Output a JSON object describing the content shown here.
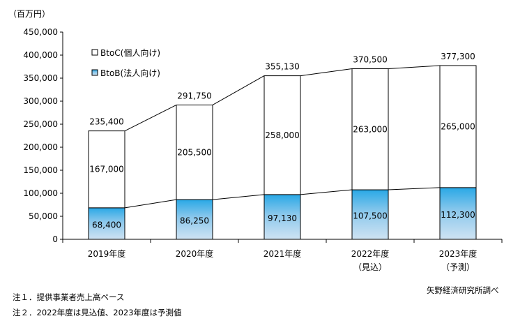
{
  "chart_data": {
    "type": "bar",
    "stacked": true,
    "unit_label": "（百万円）",
    "categories": [
      [
        "2019年度",
        ""
      ],
      [
        "2020年度",
        ""
      ],
      [
        "2021年度",
        ""
      ],
      [
        "2022年度",
        "（見込）"
      ],
      [
        "2023年度",
        "（予測）"
      ]
    ],
    "series": [
      {
        "name": "BtoB(法人向け)",
        "values": [
          68400,
          86250,
          97130,
          107500,
          112300
        ],
        "labels": [
          "68,400",
          "86,250",
          "97,130",
          "107,500",
          "112,300"
        ],
        "color_top": "#29a8e6",
        "color_bottom": "#cfe3f3"
      },
      {
        "name": "BtoC(個人向け)",
        "values": [
          167000,
          205500,
          258000,
          263000,
          265000
        ],
        "labels": [
          "167,000",
          "205,500",
          "258,000",
          "263,000",
          "265,000"
        ],
        "color": "#ffffff"
      }
    ],
    "totals": [
      235400,
      291750,
      355130,
      370500,
      377300
    ],
    "total_labels": [
      "235,400",
      "291,750",
      "355,130",
      "370,500",
      "377,300"
    ],
    "ylim": [
      0,
      450000
    ],
    "yticks": [
      0,
      50000,
      100000,
      150000,
      200000,
      250000,
      300000,
      350000,
      400000,
      450000
    ],
    "ytick_labels": [
      "0",
      "50,000",
      "100,000",
      "150,000",
      "200,000",
      "250,000",
      "300,000",
      "350,000",
      "400,000",
      "450,000"
    ],
    "grid": false,
    "legend_position": "top-left",
    "connector_lines": true
  },
  "notes": [
    "注１．提供事業者売上高ベース",
    "注２．2022年度は見込値、2023年度は予測値"
  ],
  "source": "矢野経済研究所調べ"
}
